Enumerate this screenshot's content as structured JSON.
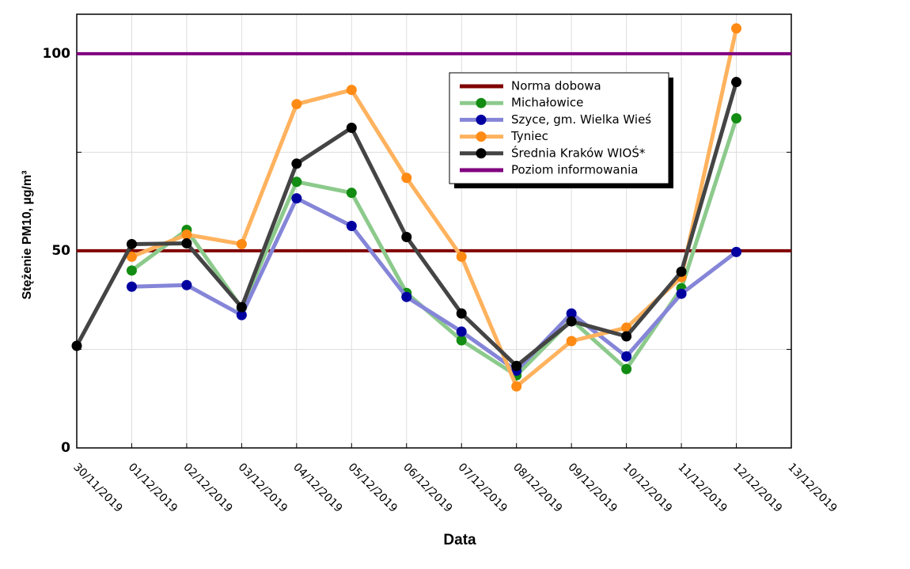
{
  "chart_data": {
    "type": "line",
    "xlabel": "Data",
    "ylabel": "Stężenie PM10, µg/m³",
    "categories": [
      "30/11/2019",
      "01/12/2019",
      "02/12/2019",
      "03/12/2019",
      "04/12/2019",
      "05/12/2019",
      "06/12/2019",
      "07/12/2019",
      "08/12/2019",
      "09/12/2019",
      "10/12/2019",
      "11/12/2019",
      "12/12/2019",
      "13/12/2019"
    ],
    "ylim": [
      0,
      110
    ],
    "yticks": [
      0,
      50,
      100
    ],
    "yminor_ticks": [
      25,
      75
    ],
    "grid": true,
    "legend": "upper center",
    "series": [
      {
        "name": "Norma dobowa",
        "color": "#800000",
        "values": [
          50,
          50,
          50,
          50,
          50,
          50,
          50,
          50,
          50,
          50,
          50,
          50,
          50,
          50
        ]
      },
      {
        "name": "Michałowice",
        "color": "#8cca8c",
        "marker_color": "#128c12",
        "values": [
          null,
          45,
          55.3,
          35.5,
          67.5,
          64.7,
          39.3,
          27.3,
          18.4,
          32.5,
          20,
          40.5,
          83.6,
          null
        ]
      },
      {
        "name": "Szyce, gm. Wielka Wieś",
        "color": "#8585d8",
        "marker_color": "#0000a0",
        "values": [
          null,
          40.9,
          41.3,
          33.7,
          63.3,
          56.3,
          38.3,
          29.5,
          19.6,
          34.1,
          23.2,
          39.1,
          49.7,
          null
        ]
      },
      {
        "name": "Tyniec",
        "color": "#ffb25e",
        "marker_color": "#ff8a14",
        "values": [
          null,
          48.5,
          54.1,
          51.7,
          87.2,
          90.8,
          68.5,
          48.5,
          15.6,
          27.1,
          30.5,
          43.3,
          106.4,
          null
        ]
      },
      {
        "name": "Średnia Kraków WIOŚ*",
        "color": "#444444",
        "marker_color": "#000000",
        "values": [
          25.9,
          51.7,
          51.9,
          35.7,
          72.1,
          81.2,
          53.5,
          34.1,
          20.8,
          32.1,
          28.3,
          44.7,
          92.8,
          null
        ]
      },
      {
        "name": "Poziom informowania",
        "color": "#800080",
        "values": [
          100,
          100,
          100,
          100,
          100,
          100,
          100,
          100,
          100,
          100,
          100,
          100,
          100,
          100
        ]
      }
    ]
  }
}
